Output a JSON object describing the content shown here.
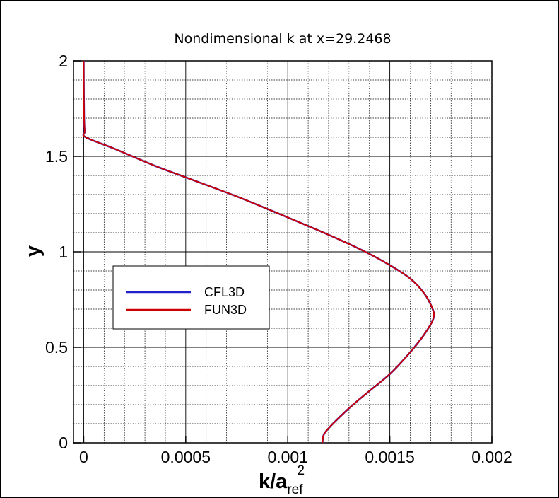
{
  "chart_data": {
    "type": "line",
    "title": "Nondimensional k at x=29.2468",
    "xlabel": {
      "main": "k/a",
      "sub": "ref",
      "sup": "2"
    },
    "ylabel": "y",
    "xlim": [
      -5e-05,
      0.002
    ],
    "ylim": [
      0,
      2
    ],
    "xticks": [
      0,
      0.0005,
      0.001,
      0.0015,
      0.002
    ],
    "xtick_labels": [
      "0",
      "0.0005",
      "0.001",
      "0.0015",
      "0.002"
    ],
    "yticks": [
      0,
      0.5,
      1,
      1.5,
      2
    ],
    "ytick_labels": [
      "0",
      "0.5",
      "1",
      "1.5",
      "2"
    ],
    "grid": true,
    "legend_position": "center-left",
    "series": [
      {
        "name": "CFL3D",
        "color": "#2222cc",
        "x": [
          0.00117,
          0.00118,
          0.00124,
          0.00132,
          0.00141,
          0.0015,
          0.00158,
          0.00165,
          0.0017,
          0.001715,
          0.00171,
          0.00167,
          0.0016,
          0.0015,
          0.00138,
          0.00122,
          0.001,
          0.00075,
          0.0005,
          0.00035,
          0.00015,
          1e-05,
          5e-06,
          2e-06,
          5e-07,
          0.0
        ],
        "y": [
          0.0,
          0.05,
          0.12,
          0.2,
          0.28,
          0.36,
          0.45,
          0.54,
          0.62,
          0.66,
          0.7,
          0.78,
          0.86,
          0.93,
          1.0,
          1.08,
          1.18,
          1.29,
          1.39,
          1.45,
          1.54,
          1.6,
          1.63,
          1.7,
          1.85,
          2.0
        ]
      },
      {
        "name": "FUN3D",
        "color": "#cc0000",
        "x": [
          0.00117,
          0.00118,
          0.00124,
          0.00132,
          0.00141,
          0.0015,
          0.00158,
          0.00165,
          0.0017,
          0.001715,
          0.00171,
          0.00167,
          0.0016,
          0.0015,
          0.00138,
          0.00122,
          0.001,
          0.00075,
          0.0005,
          0.00035,
          0.00015,
          1e-05,
          5e-06,
          2e-06,
          5e-07,
          0.0
        ],
        "y": [
          0.0,
          0.05,
          0.12,
          0.2,
          0.28,
          0.36,
          0.45,
          0.54,
          0.62,
          0.66,
          0.7,
          0.78,
          0.86,
          0.93,
          1.0,
          1.08,
          1.18,
          1.29,
          1.39,
          1.45,
          1.54,
          1.6,
          1.63,
          1.7,
          1.85,
          2.0
        ]
      }
    ]
  }
}
